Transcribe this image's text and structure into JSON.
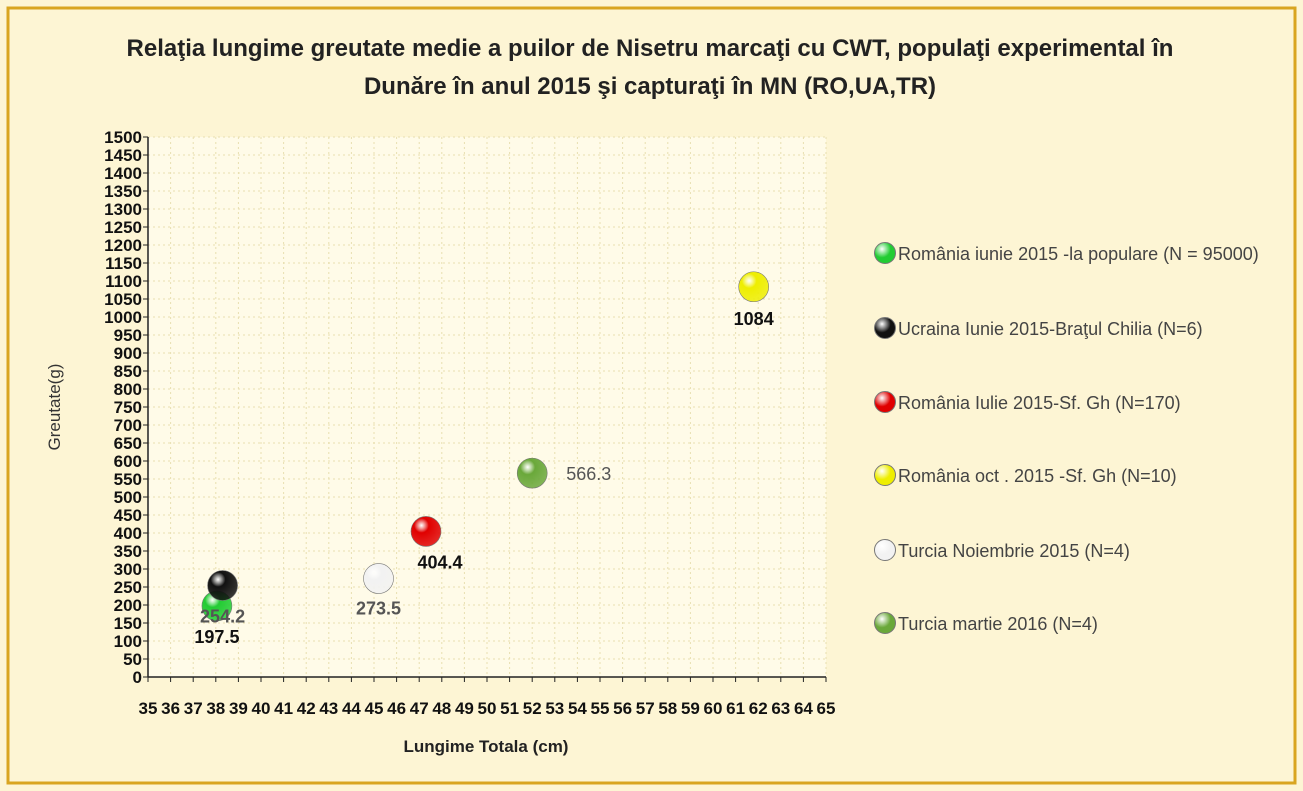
{
  "chart_data": {
    "type": "scatter",
    "title": "Relaţia lungime greutate medie a puilor de Nisetru marcaţi cu CWT, populaţi experimental în Dunăre în anul 2015 şi capturaţi în MN (RO,UA,TR)",
    "x_label": "Lungime Totala (cm)",
    "y_label": "Greutate(g)",
    "xlim": [
      35,
      65
    ],
    "xticks": [
      35,
      36,
      37,
      38,
      39,
      40,
      41,
      42,
      43,
      44,
      45,
      46,
      47,
      48,
      49,
      50,
      51,
      52,
      53,
      54,
      55,
      56,
      57,
      58,
      59,
      60,
      61,
      62,
      63,
      64,
      65
    ],
    "ylim": [
      0,
      1500
    ],
    "yticks": [
      0,
      50,
      100,
      150,
      200,
      250,
      300,
      350,
      400,
      450,
      500,
      550,
      600,
      650,
      700,
      750,
      800,
      850,
      900,
      950,
      1000,
      1050,
      1100,
      1150,
      1200,
      1250,
      1300,
      1350,
      1400,
      1450,
      1500
    ],
    "grid": true,
    "legend": "right",
    "series": [
      {
        "name": "România iunie 2015 -la populare (N = 95000)",
        "color": "#22cc33",
        "x": [
          38.05
        ],
        "values": [
          197.5
        ]
      },
      {
        "name": "Ucraina  Iunie 2015-Braţul Chilia (N=6)",
        "color": "#111111",
        "x": [
          38.3
        ],
        "values": [
          254.2
        ]
      },
      {
        "name": "România Iulie 2015-Sf. Gh (N=170)",
        "color": "#e00000",
        "x": [
          47.3
        ],
        "values": [
          404.4
        ]
      },
      {
        "name": "România oct . 2015 -Sf. Gh (N=10)",
        "color": "#eeee00",
        "x": [
          61.8
        ],
        "values": [
          1084
        ]
      },
      {
        "name": "Turcia Noiembrie  2015 (N=4)",
        "color": "#f2f2f2",
        "x": [
          45.2
        ],
        "values": [
          273.5
        ]
      },
      {
        "name": "Turcia martie 2016 (N=4)",
        "color": "#6aa83a",
        "x": [
          52
        ],
        "values": [
          566.3
        ]
      }
    ]
  }
}
